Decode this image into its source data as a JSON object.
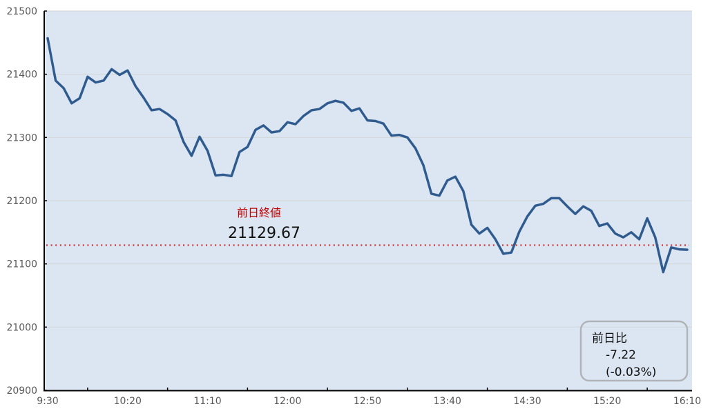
{
  "chart_data": {
    "type": "line",
    "title": "",
    "xlabel": "",
    "ylabel": "",
    "ylim": [
      20900,
      21500
    ],
    "yticks": [
      20900,
      21000,
      21100,
      21200,
      21300,
      21400,
      21500
    ],
    "xticks": [
      "9:30",
      "10:20",
      "11:10",
      "12:00",
      "12:50",
      "13:40",
      "14:30",
      "15:20",
      "16:10"
    ],
    "x_start": "9:30",
    "x_step_minutes": 5,
    "grid": "horizontal",
    "colors": {
      "line": "#2f5b8f",
      "background": "#dce6f2",
      "reference": "#d03030",
      "grid": "#d4d8dc",
      "box_border": "#b0b4b8"
    },
    "series": [
      {
        "values": [
          21457,
          21390,
          21378,
          21354,
          21362,
          21396,
          21387,
          21390,
          21408,
          21399,
          21406,
          21381,
          21363,
          21343,
          21345,
          21337,
          21327,
          21293,
          21271,
          21301,
          21279,
          21240,
          21241,
          21239,
          21277,
          21285,
          21312,
          21319,
          21308,
          21310,
          21324,
          21321,
          21334,
          21343,
          21345,
          21354,
          21358,
          21355,
          21342,
          21346,
          21327,
          21326,
          21322,
          21303,
          21304,
          21300,
          21283,
          21256,
          21211,
          21208,
          21232,
          21238,
          21215,
          21162,
          21148,
          21157,
          21139,
          21116,
          21118,
          21151,
          21175,
          21192,
          21195,
          21204,
          21204,
          21191,
          21179,
          21191,
          21184,
          21160,
          21164,
          21148,
          21142,
          21150,
          21139,
          21172,
          21142,
          21087,
          21126,
          21123,
          21122.45
        ]
      }
    ],
    "reference_line": {
      "label": "前日終値",
      "value": 21129.67,
      "value_text": "21129.67"
    },
    "change_box": {
      "label": "前日比",
      "change": "-7.22",
      "percent": "(-0.03%)"
    }
  }
}
